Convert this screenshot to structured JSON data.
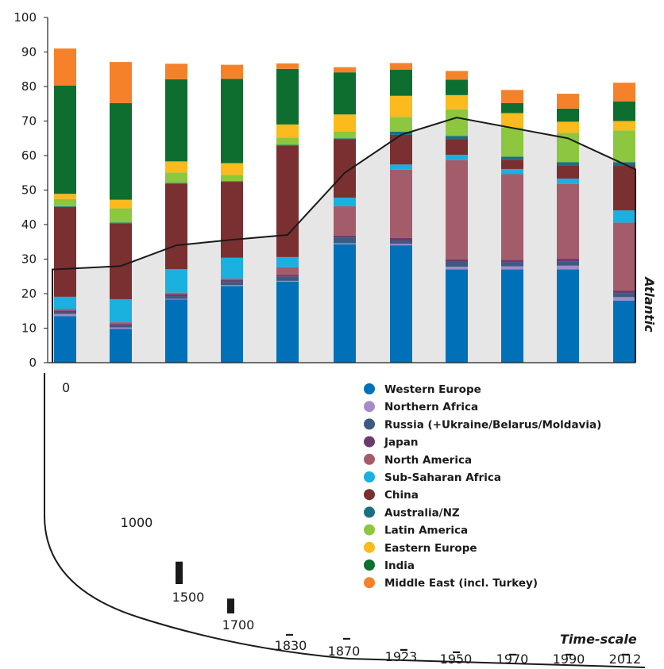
{
  "chart_data": {
    "type": "bar",
    "stacked": true,
    "ylim": [
      0,
      100
    ],
    "yticks": [
      0,
      10,
      20,
      30,
      40,
      50,
      60,
      70,
      80,
      90,
      100
    ],
    "categories": [
      "0",
      "1000",
      "1500",
      "1700",
      "1830",
      "1870",
      "1923",
      "1950",
      "1970",
      "1990",
      "2012"
    ],
    "series": [
      {
        "name": "Western Europe",
        "color": "#0070b8",
        "values": [
          13.5,
          9.8,
          18.3,
          22.2,
          23.5,
          34.3,
          34,
          27,
          27,
          27,
          18
        ]
      },
      {
        "name": "Northern Africa",
        "color": "#a58cc6",
        "values": [
          0.6,
          0.4,
          0.2,
          0.3,
          0.2,
          0.3,
          0.4,
          0.8,
          0.9,
          1.1,
          1
        ]
      },
      {
        "name": "Russia (+Ukraine/Belarus/Moldavia)",
        "color": "#3d5a80",
        "values": [
          0.5,
          0.5,
          0.8,
          0.9,
          1.2,
          1.7,
          1,
          1.5,
          1.2,
          1.3,
          1.2
        ]
      },
      {
        "name": "Japan",
        "color": "#6b3a6f",
        "values": [
          0.5,
          0.5,
          0.5,
          0.5,
          0.5,
          0.5,
          0.7,
          0.6,
          0.7,
          0.7,
          0.7
        ]
      },
      {
        "name": "North America",
        "color": "#a35d6a",
        "values": [
          0.5,
          0.5,
          0.5,
          0.5,
          2.2,
          8.5,
          19.8,
          28.8,
          24.8,
          21.7,
          19.7
        ]
      },
      {
        "name": "Sub-Saharan Africa",
        "color": "#1ab0e0",
        "values": [
          3.5,
          6.7,
          6.8,
          6,
          3,
          2.5,
          1.5,
          1.5,
          1.5,
          1.5,
          3.5
        ]
      },
      {
        "name": "China",
        "color": "#7a3030",
        "values": [
          26,
          22,
          24.8,
          22,
          32.3,
          16.8,
          8.6,
          4.6,
          2.7,
          3.9,
          12.9
        ]
      },
      {
        "name": "Australia/NZ",
        "color": "#1a7080",
        "values": [
          0.2,
          0.2,
          0.2,
          0.2,
          0.2,
          0.4,
          0.9,
          0.9,
          0.9,
          0.9,
          1.1
        ]
      },
      {
        "name": "Latin America",
        "color": "#8dc63f",
        "values": [
          2.1,
          4.1,
          3,
          1.8,
          2.1,
          1.9,
          4.3,
          7.7,
          8.5,
          8.5,
          9.2
        ]
      },
      {
        "name": "Eastern Europe",
        "color": "#fbba1d",
        "values": [
          1.5,
          2.5,
          3.2,
          3.4,
          3.8,
          5,
          6.1,
          4.1,
          4.1,
          3.2,
          2.7
        ]
      },
      {
        "name": "India",
        "color": "#0e6e30",
        "values": [
          31.4,
          28,
          23.8,
          24.4,
          16.1,
          12.2,
          7.6,
          4.5,
          2.9,
          3.8,
          5.7
        ]
      },
      {
        "name": "Middle East (incl. Turkey)",
        "color": "#f5822a",
        "values": [
          10.7,
          11.9,
          4.5,
          4.1,
          1.6,
          1.5,
          1.9,
          2.5,
          3.8,
          4.3,
          5.4
        ]
      }
    ],
    "line": {
      "values": [
        27,
        28,
        34,
        35.6,
        37,
        55,
        66,
        71,
        68,
        65,
        56
      ]
    },
    "timescale_bar_heights": [
      0,
      19,
      6.5,
      4.3,
      0.5,
      0.5,
      0.5,
      0.5,
      0.5,
      0.5,
      0.5
    ],
    "side_label": "Atlantic",
    "timescale_label": "Time-scale"
  }
}
